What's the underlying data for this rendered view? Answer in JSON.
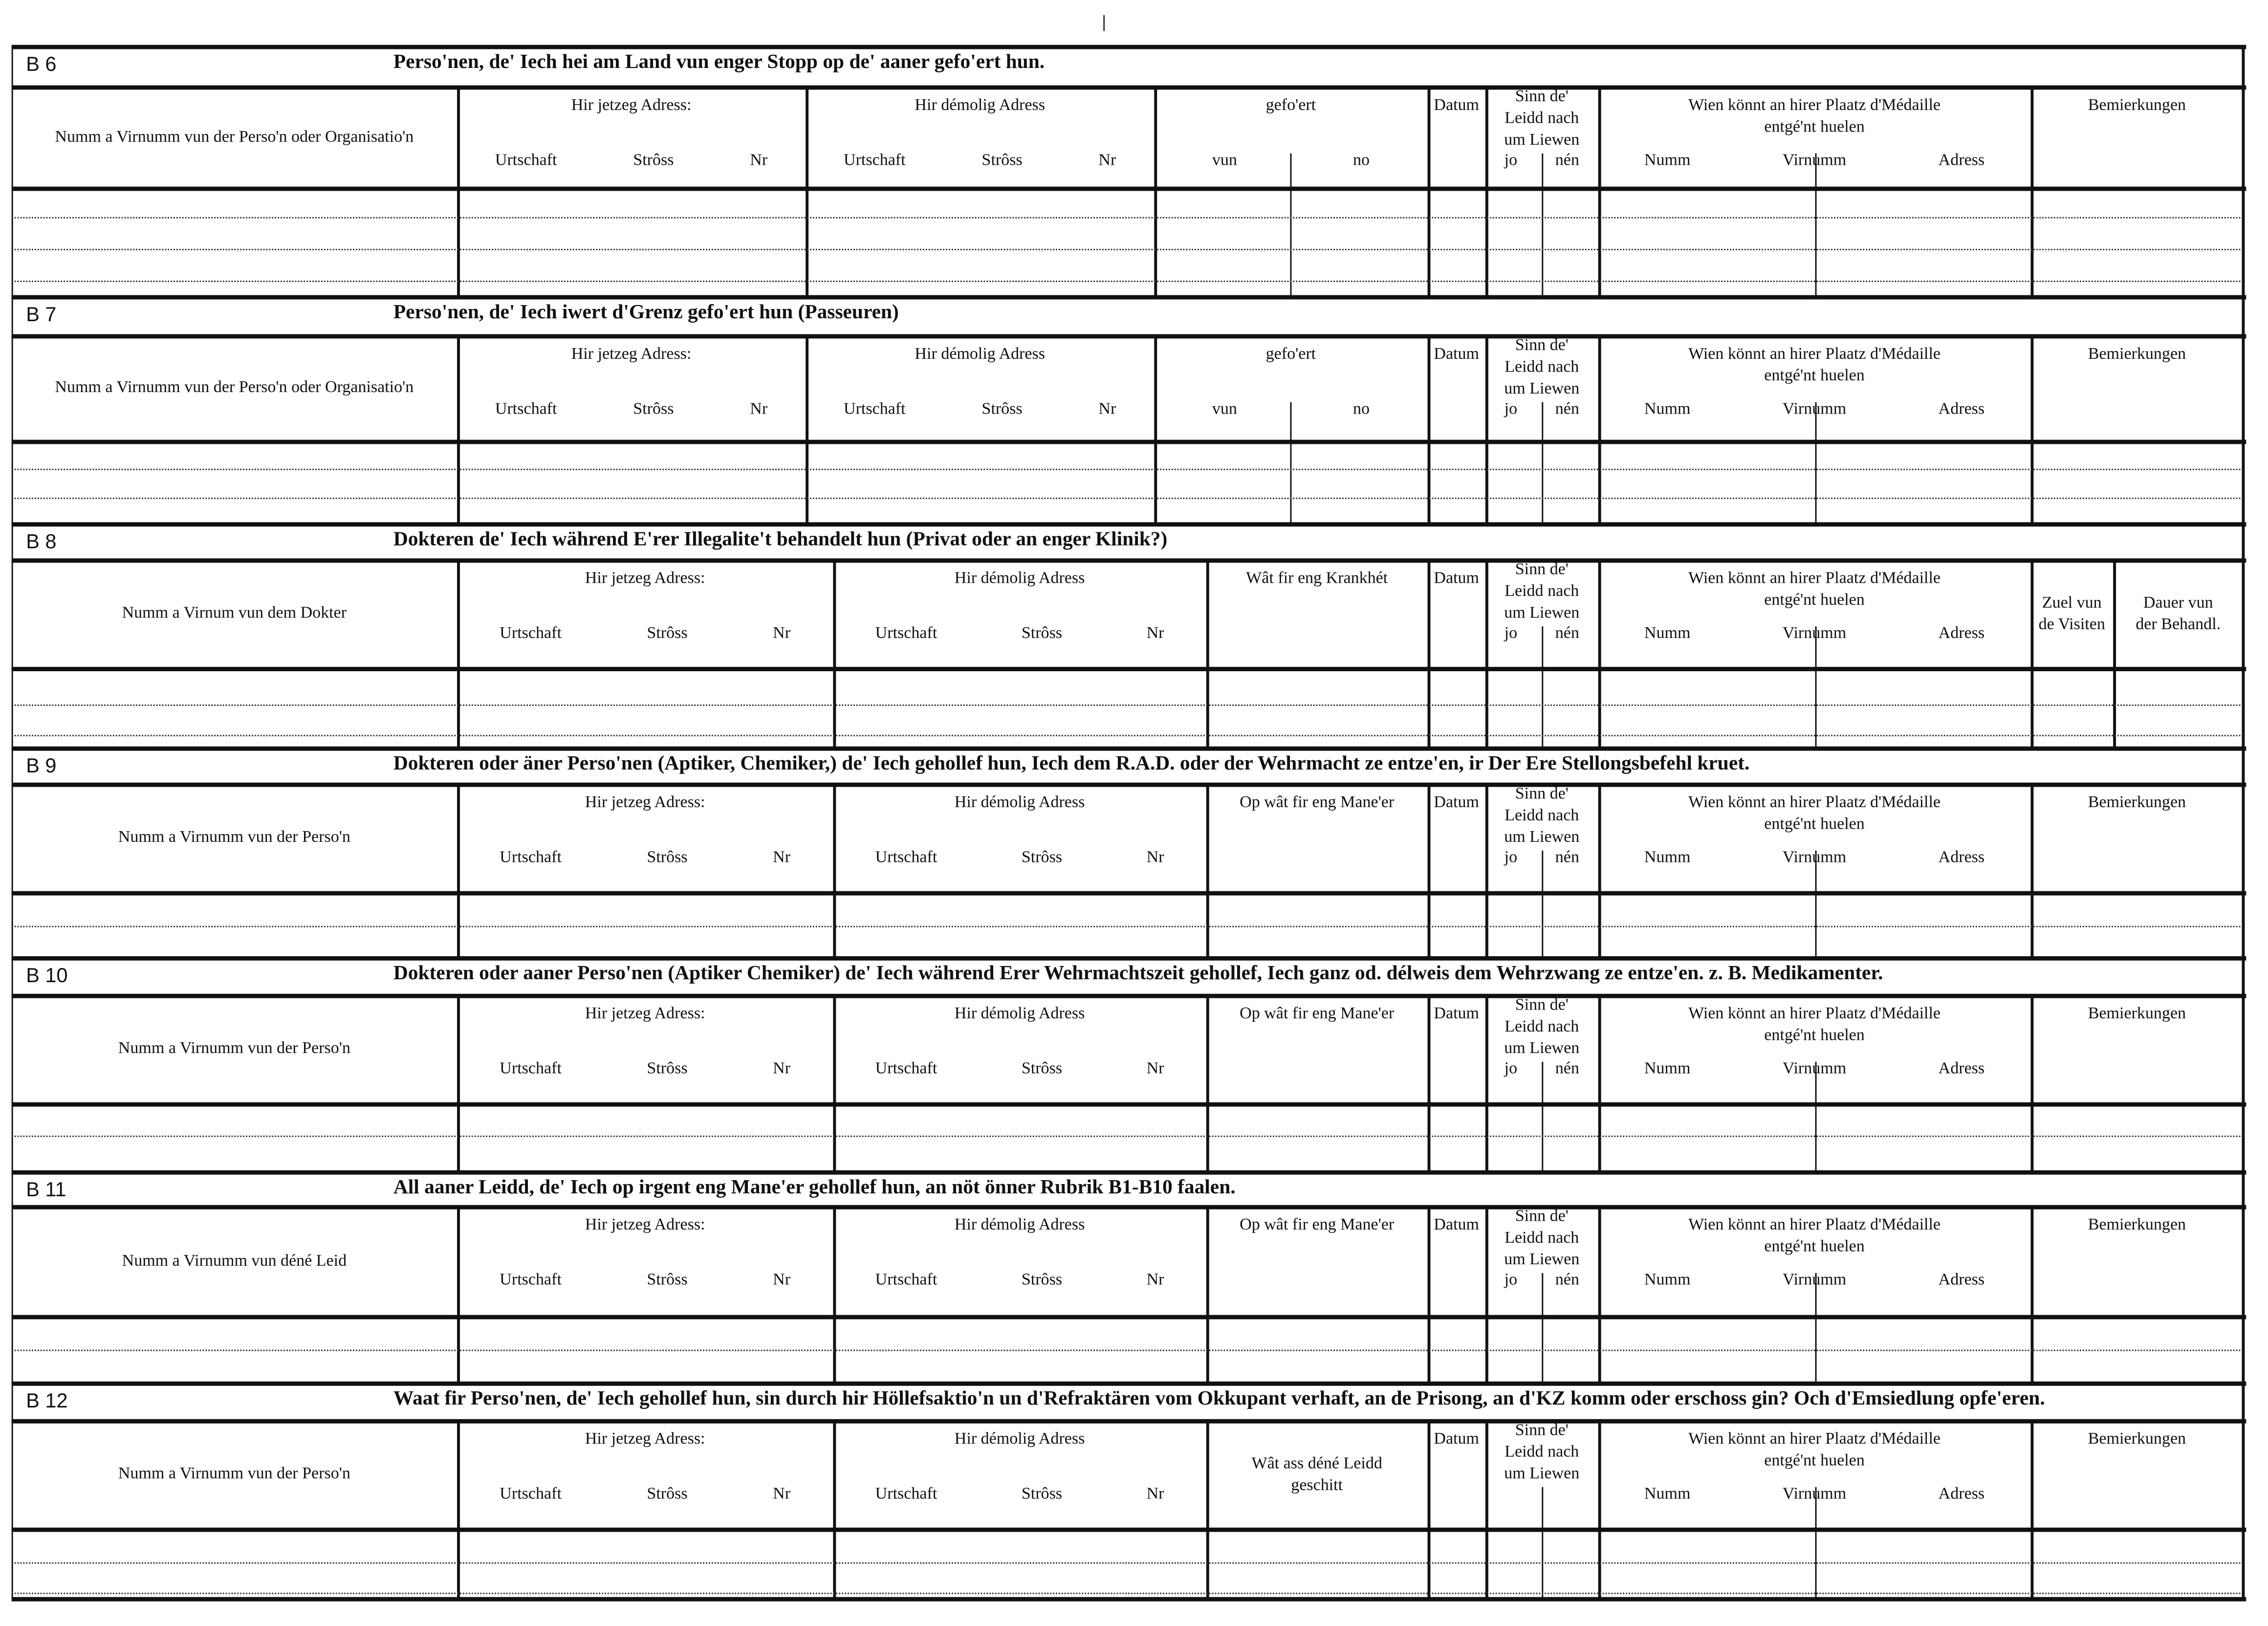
{
  "sections": [
    {
      "id": "B 6",
      "title": "Perso'nen, de' Iech hei am Land vun enger Stopp  op de' aaner gefo'ert hun.",
      "columns": [
        {
          "label": "Numm a Virnumm vun der Perso'n oder Organisatio'n",
          "sub": []
        },
        {
          "label": "Hir jetzeg Adress:",
          "sub": [
            "Urtschaft",
            "Strôss",
            "Nr"
          ]
        },
        {
          "label": "Hir démolig Adress",
          "sub": [
            "Urtschaft",
            "Strôss",
            "Nr"
          ]
        },
        {
          "label": "gefo'ert",
          "sub": [
            "vun",
            "no"
          ]
        },
        {
          "label": "Datum",
          "sub": []
        },
        {
          "label": "Sinn  de'\nLeidd  nach\num  Liewen",
          "sub": [
            "jo",
            "nén"
          ]
        },
        {
          "label": "Wien  könnt  an  hirer  Plaatz  d'Médaille\nentgé'nt  huelen",
          "sub": [
            "Numm",
            "Virnumm",
            "Adress"
          ]
        },
        {
          "label": "Bemierkungen",
          "sub": []
        }
      ]
    },
    {
      "id": "B 7",
      "title": "Perso'nen, de' Iech iwert d'Grenz gefo'ert hun (Passeuren)",
      "columns": [
        {
          "label": "Numm a Virnumm vun der Perso'n oder Organisatio'n",
          "sub": []
        },
        {
          "label": "Hir jetzeg Adress:",
          "sub": [
            "Urtschaft",
            "Strôss",
            "Nr"
          ]
        },
        {
          "label": "Hir démolig Adress",
          "sub": [
            "Urtschaft",
            "Strôss",
            "Nr"
          ]
        },
        {
          "label": "gefo'ert",
          "sub": [
            "vun",
            "no"
          ]
        },
        {
          "label": "Datum",
          "sub": []
        },
        {
          "label": "Sinn  de'\nLeidd  nach\num  Liewen",
          "sub": [
            "jo",
            "nén"
          ]
        },
        {
          "label": "Wien  könnt  an  hirer  Plaatz  d'Médaille\nentgé'nt  huelen",
          "sub": [
            "Numm",
            "Virnumm",
            "Adress"
          ]
        },
        {
          "label": "Bemierkungen",
          "sub": []
        }
      ]
    },
    {
      "id": "B 8",
      "title": "Dokteren de' Iech während E'rer Illegalite't behandelt hun (Privat  oder an enger Klinik?)",
      "columns": [
        {
          "label": "Numm a Virnum vun dem Dokter",
          "sub": []
        },
        {
          "label": "Hir jetzeg Adress:",
          "sub": [
            "Urtschaft",
            "Strôss",
            "Nr"
          ]
        },
        {
          "label": "Hir démolig Adress",
          "sub": [
            "Urtschaft",
            "Strôss",
            "Nr"
          ]
        },
        {
          "label": "Wât  fir  eng  Krankhét",
          "sub": []
        },
        {
          "label": "Datum",
          "sub": []
        },
        {
          "label": "Sinn  de'\nLeidd  nach\num  Liewen",
          "sub": [
            "jo",
            "nén"
          ]
        },
        {
          "label": "Wien  könnt  an  hirer  Plaatz  d'Médaille\nentgé'nt  huelen",
          "sub": [
            "Numm",
            "Virnumm",
            "Adress"
          ]
        },
        {
          "label": "Zuel  vun\nde  Visiten",
          "sub": []
        },
        {
          "label": "Dauer  vun\nder  Behandl.",
          "sub": []
        }
      ]
    },
    {
      "id": "B 9",
      "title": "Dokteren oder äner Perso'nen (Aptiker, Chemiker,) de' Iech gehollef hun, Iech dem R.A.D. oder der  Wehrmacht  ze  entze'en,  ir  Der  Ere  Stellongsbefehl  kruet.",
      "columns": [
        {
          "label": "Numm  a  Virnumm  vun  der  Perso'n",
          "sub": []
        },
        {
          "label": "Hir jetzeg Adress:",
          "sub": [
            "Urtschaft",
            "Strôss",
            "Nr"
          ]
        },
        {
          "label": "Hir démolig Adress",
          "sub": [
            "Urtschaft",
            "Strôss",
            "Nr"
          ]
        },
        {
          "label": "Op  wât  fir  eng  Mane'er",
          "sub": []
        },
        {
          "label": "Datum",
          "sub": []
        },
        {
          "label": "Sinn  de'\nLeidd  nach\num  Liewen",
          "sub": [
            "jo",
            "nén"
          ]
        },
        {
          "label": "Wien  könnt  an  hirer  Plaatz  d'Médaille\nentgé'nt  huelen",
          "sub": [
            "Numm",
            "Virnumm",
            "Adress"
          ]
        },
        {
          "label": "Bemierkungen",
          "sub": []
        }
      ]
    },
    {
      "id": "B 10",
      "title": "Dokteren oder aaner Perso'nen (Aptiker Chemiker)  de' Iech während Erer Wehrmachtszeit gehollef,  Iech ganz od. délweis dem Wehrzwang ze entze'en. z. B. Medikamenter.",
      "columns": [
        {
          "label": "Numm  a  Virnumm  vun  der  Perso'n",
          "sub": []
        },
        {
          "label": "Hir jetzeg Adress:",
          "sub": [
            "Urtschaft",
            "Strôss",
            "Nr"
          ]
        },
        {
          "label": "Hir démolig Adress",
          "sub": [
            "Urtschaft",
            "Strôss",
            "Nr"
          ]
        },
        {
          "label": "Op  wât  fir  eng  Mane'er",
          "sub": []
        },
        {
          "label": "Datum",
          "sub": []
        },
        {
          "label": "Sinn  de'\nLeidd  nach\num  Liewen",
          "sub": [
            "jo",
            "nén"
          ]
        },
        {
          "label": "Wien  könnt  an  hirer  Plaatz  d'Médaille\nentgé'nt  huelen",
          "sub": [
            "Numm",
            "Virnumm",
            "Adress"
          ]
        },
        {
          "label": "Bemierkungen",
          "sub": []
        }
      ]
    },
    {
      "id": "B 11",
      "title": "All aaner Leidd, de' Iech op irgent eng Mane'er gehollef hun, an nöt önner Rubrik B1-B10 faalen.",
      "columns": [
        {
          "label": "Numm  a  Virnumm  vun  déné  Leid",
          "sub": []
        },
        {
          "label": "Hir jetzeg Adress:",
          "sub": [
            "Urtschaft",
            "Strôss",
            "Nr"
          ]
        },
        {
          "label": "Hir démolig Adress",
          "sub": [
            "Urtschaft",
            "Strôss",
            "Nr"
          ]
        },
        {
          "label": "Op  wât  fir  eng  Mane'er",
          "sub": []
        },
        {
          "label": "Datum",
          "sub": []
        },
        {
          "label": "Sinn  de'\nLeidd  nach\num  Liewen",
          "sub": [
            "jo",
            "nén"
          ]
        },
        {
          "label": "Wien  könnt  an  hirer  Plaatz  d'Médaille\nentgé'nt  huelen",
          "sub": [
            "Numm",
            "Virnumm",
            "Adress"
          ]
        },
        {
          "label": "Bemierkungen",
          "sub": []
        }
      ]
    },
    {
      "id": "B 12",
      "title": "Waat fir Perso'nen, de' Iech gehollef hun, sin durch hir Höllefsaktio'n un d'Refraktären vom Okkupant verhaft, an de Prisong, an d'KZ komm oder  erschoss gin? Och d'Emsiedlung opfe'eren.",
      "columns": [
        {
          "label": "Numm  a  Virnumm  vun  der  Perso'n",
          "sub": []
        },
        {
          "label": "Hir jetzeg Adress:",
          "sub": [
            "Urtschaft",
            "Strôss",
            "Nr"
          ]
        },
        {
          "label": "Hir démolig Adress",
          "sub": [
            "Urtschaft",
            "Strôss",
            "Nr"
          ]
        },
        {
          "label": "Wât  ass  déné  Leidd\ngeschitt",
          "sub": []
        },
        {
          "label": "Datum",
          "sub": []
        },
        {
          "label": "Sinn  de'\nLeidd  nach\num  Liewen",
          "sub": []
        },
        {
          "label": "Wien  könnt  an  hirer  Plaatz  d'Médaille\nentgé'nt  huelen",
          "sub": [
            "Numm",
            "Virnumm",
            "Adress"
          ]
        },
        {
          "label": "Bemierkungen",
          "sub": []
        }
      ]
    }
  ]
}
